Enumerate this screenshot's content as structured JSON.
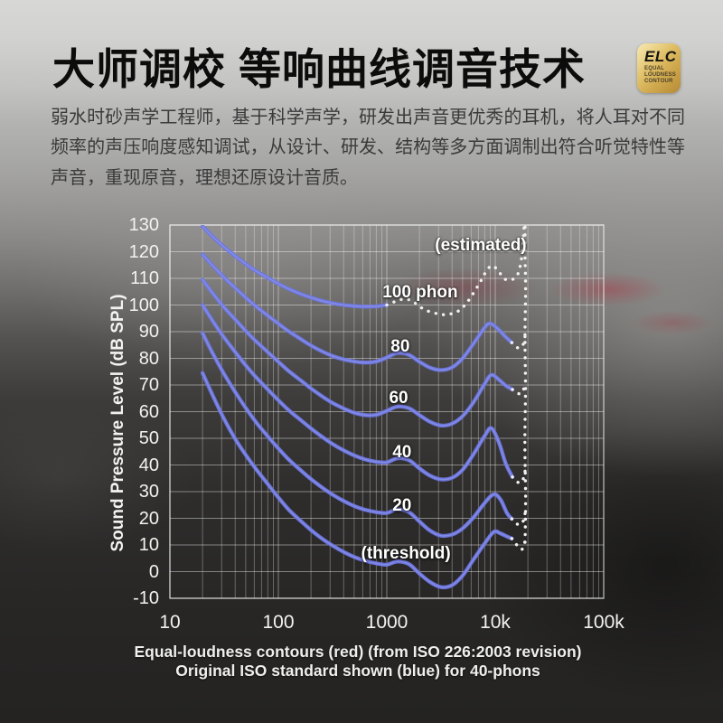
{
  "header": {
    "title": "大师调校 等响曲线调音技术",
    "badge": {
      "acronym": "ELC",
      "sub": [
        "EQUAL",
        "LOUDNESS",
        "CONTOUR"
      ]
    }
  },
  "intro": {
    "text": "弱水时砂声学工程师，基于科学声学，研发出声音更优秀的耳机，将人耳对不同频率的声压响度感知调试，从设计、研发、结构等多方面调制出符合听觉特性等声音，重现原音，理想还原设计音质。"
  },
  "chart_data": {
    "type": "line",
    "x_scale": "log",
    "x_range": [
      10,
      100000
    ],
    "y_range": [
      -10,
      130
    ],
    "grid": "on",
    "xlabel": "",
    "ylabel": "Sound Pressure Level (dB SPL)",
    "caption": [
      "Equal-loudness contours (red) (from ISO 226:2003 revision)",
      "Original ISO standard shown (blue) for 40-phons"
    ],
    "x_ticks": [
      {
        "value": 10,
        "label": "10"
      },
      {
        "value": 100,
        "label": "100"
      },
      {
        "value": 1000,
        "label": "1000"
      },
      {
        "value": 10000,
        "label": "10k"
      },
      {
        "value": 100000,
        "label": "100k"
      }
    ],
    "y_ticks": [
      130,
      120,
      110,
      100,
      90,
      80,
      70,
      60,
      50,
      40,
      30,
      20,
      10,
      0,
      -10
    ],
    "colors": {
      "contour": "#6e77e3",
      "contour_highlight": "#9ca6f0",
      "estimated": "#f1f1ef",
      "grid": "rgba(255,255,255,0.30)",
      "grid_major": "rgba(255,255,255,0.42)",
      "frame": "rgba(255,255,255,0.62)",
      "text": "#f2f2f0"
    },
    "series": [
      {
        "name": "contour-100-phon",
        "style": "solid",
        "points": [
          [
            20,
            129.5
          ],
          [
            25,
            125.5
          ],
          [
            31.5,
            121.8
          ],
          [
            40,
            118.4
          ],
          [
            50,
            115.4
          ],
          [
            63,
            112.6
          ],
          [
            80,
            110.2
          ],
          [
            100,
            108
          ],
          [
            125,
            106
          ],
          [
            160,
            104.2
          ],
          [
            200,
            102.8
          ],
          [
            250,
            101.6
          ],
          [
            315,
            100.7
          ],
          [
            400,
            100
          ],
          [
            500,
            99.6
          ],
          [
            630,
            99.4
          ],
          [
            800,
            99.5
          ],
          [
            1000,
            100
          ]
        ]
      },
      {
        "name": "estimated-100-phon",
        "style": "dotted",
        "points": [
          [
            1000,
            100
          ],
          [
            1250,
            101.6
          ],
          [
            1500,
            102.3
          ],
          [
            1800,
            100.9
          ],
          [
            2200,
            98.4
          ],
          [
            2800,
            96.9
          ],
          [
            3500,
            96.4
          ],
          [
            4500,
            97.6
          ],
          [
            5500,
            101
          ],
          [
            7000,
            107.5
          ],
          [
            8300,
            112.8
          ],
          [
            9300,
            114.7
          ],
          [
            10500,
            113.2
          ],
          [
            12000,
            110
          ],
          [
            13500,
            109.4
          ],
          [
            15000,
            110
          ],
          [
            16300,
            112
          ],
          [
            17300,
            116.5
          ],
          [
            18100,
            124
          ],
          [
            18600,
            133
          ]
        ]
      },
      {
        "name": "contour-80-phon",
        "style": "solid",
        "points": [
          [
            20,
            119
          ],
          [
            25,
            114.6
          ],
          [
            31.5,
            110.4
          ],
          [
            40,
            106.4
          ],
          [
            50,
            102.8
          ],
          [
            63,
            99.3
          ],
          [
            80,
            96
          ],
          [
            100,
            93
          ],
          [
            125,
            90.1
          ],
          [
            160,
            87.3
          ],
          [
            200,
            84.8
          ],
          [
            250,
            82.7
          ],
          [
            315,
            80.9
          ],
          [
            400,
            79.6
          ],
          [
            500,
            78.8
          ],
          [
            630,
            78.4
          ],
          [
            800,
            78.8
          ],
          [
            1000,
            80.3
          ],
          [
            1250,
            82
          ],
          [
            1600,
            81.3
          ],
          [
            2000,
            78.7
          ],
          [
            2500,
            76.5
          ],
          [
            3150,
            75.6
          ],
          [
            4000,
            76.6
          ],
          [
            5000,
            80
          ],
          [
            6300,
            85.5
          ],
          [
            8000,
            91.6
          ],
          [
            9000,
            93.1
          ],
          [
            10500,
            91.2
          ],
          [
            12500,
            88
          ],
          [
            14200,
            85.9
          ]
        ]
      },
      {
        "name": "estimated-80-tail",
        "style": "dotted",
        "points": [
          [
            14200,
            85.9
          ],
          [
            16000,
            84
          ],
          [
            17800,
            84.6
          ],
          [
            19000,
            89
          ]
        ]
      },
      {
        "name": "contour-60-phon",
        "style": "solid",
        "points": [
          [
            20,
            109.5
          ],
          [
            25,
            104.2
          ],
          [
            31.5,
            99.2
          ],
          [
            40,
            94.6
          ],
          [
            50,
            90.3
          ],
          [
            63,
            86.2
          ],
          [
            80,
            82.3
          ],
          [
            100,
            78.7
          ],
          [
            125,
            75.2
          ],
          [
            160,
            71.8
          ],
          [
            200,
            68.7
          ],
          [
            250,
            65.9
          ],
          [
            315,
            63.3
          ],
          [
            400,
            61.2
          ],
          [
            500,
            59.6
          ],
          [
            630,
            58.7
          ],
          [
            800,
            58.8
          ],
          [
            1000,
            60.3
          ],
          [
            1250,
            61.9
          ],
          [
            1600,
            61.3
          ],
          [
            2000,
            58.7
          ],
          [
            2500,
            56.2
          ],
          [
            3150,
            54.8
          ],
          [
            4000,
            55.5
          ],
          [
            5000,
            58.3
          ],
          [
            6300,
            63.5
          ],
          [
            8000,
            70.5
          ],
          [
            9200,
            73.8
          ],
          [
            10800,
            72
          ],
          [
            12500,
            69.8
          ],
          [
            14400,
            68.3
          ]
        ]
      },
      {
        "name": "estimated-60-tail",
        "style": "dotted",
        "points": [
          [
            14400,
            68.3
          ],
          [
            16200,
            66.8
          ],
          [
            17800,
            67.3
          ],
          [
            19000,
            71
          ]
        ]
      },
      {
        "name": "contour-40-phon",
        "style": "solid",
        "points": [
          [
            20,
            100
          ],
          [
            25,
            93.8
          ],
          [
            31.5,
            87.9
          ],
          [
            40,
            82.4
          ],
          [
            50,
            77.4
          ],
          [
            63,
            72.7
          ],
          [
            80,
            68.3
          ],
          [
            100,
            64.3
          ],
          [
            125,
            60.5
          ],
          [
            160,
            56.9
          ],
          [
            200,
            53.7
          ],
          [
            250,
            50.7
          ],
          [
            315,
            47.9
          ],
          [
            400,
            45.5
          ],
          [
            500,
            43.6
          ],
          [
            630,
            42.1
          ],
          [
            800,
            41.2
          ],
          [
            1000,
            41
          ],
          [
            1250,
            42.5
          ],
          [
            1600,
            41.8
          ],
          [
            2000,
            38.7
          ],
          [
            2500,
            36
          ],
          [
            3150,
            34.6
          ],
          [
            4000,
            35.2
          ],
          [
            5000,
            38.2
          ],
          [
            6300,
            44
          ],
          [
            8000,
            51
          ],
          [
            9200,
            53.8
          ],
          [
            10800,
            48.5
          ],
          [
            12500,
            40.5
          ],
          [
            14400,
            35.5
          ]
        ]
      },
      {
        "name": "estimated-40-tail",
        "style": "dotted",
        "points": [
          [
            14400,
            35.5
          ],
          [
            16200,
            33.5
          ],
          [
            17800,
            34
          ],
          [
            19000,
            38.5
          ]
        ]
      },
      {
        "name": "contour-20-phon",
        "style": "solid",
        "points": [
          [
            20,
            89.5
          ],
          [
            25,
            81.6
          ],
          [
            31.5,
            74.2
          ],
          [
            40,
            67.4
          ],
          [
            50,
            61.4
          ],
          [
            63,
            55.8
          ],
          [
            80,
            50.7
          ],
          [
            100,
            46.2
          ],
          [
            125,
            42
          ],
          [
            160,
            38.1
          ],
          [
            200,
            34.7
          ],
          [
            250,
            31.7
          ],
          [
            315,
            28.9
          ],
          [
            400,
            26.5
          ],
          [
            500,
            24.6
          ],
          [
            630,
            23.2
          ],
          [
            800,
            22.3
          ],
          [
            1000,
            22
          ],
          [
            1250,
            23.4
          ],
          [
            1600,
            22.3
          ],
          [
            2000,
            18.8
          ],
          [
            2500,
            15.4
          ],
          [
            3150,
            13.5
          ],
          [
            4000,
            13.9
          ],
          [
            5000,
            16.2
          ],
          [
            6300,
            20.3
          ],
          [
            8000,
            25.8
          ],
          [
            9700,
            29
          ],
          [
            11200,
            27
          ],
          [
            12800,
            22
          ],
          [
            14200,
            19.8
          ]
        ]
      },
      {
        "name": "estimated-20-tail",
        "style": "dotted",
        "points": [
          [
            14200,
            19.8
          ],
          [
            16000,
            17.8
          ],
          [
            17800,
            18.3
          ],
          [
            19000,
            22.5
          ]
        ]
      },
      {
        "name": "contour-threshold",
        "style": "solid",
        "points": [
          [
            20,
            74.5
          ],
          [
            25,
            65.8
          ],
          [
            31.5,
            57.4
          ],
          [
            40,
            49.8
          ],
          [
            50,
            43.8
          ],
          [
            63,
            38.2
          ],
          [
            80,
            32.8
          ],
          [
            100,
            27.8
          ],
          [
            125,
            23.2
          ],
          [
            160,
            19.1
          ],
          [
            200,
            15.6
          ],
          [
            250,
            12.5
          ],
          [
            315,
            9.8
          ],
          [
            400,
            7.4
          ],
          [
            500,
            5.5
          ],
          [
            630,
            4.1
          ],
          [
            800,
            3.1
          ],
          [
            1000,
            2.6
          ],
          [
            1250,
            3.8
          ],
          [
            1600,
            2.8
          ],
          [
            2000,
            -0.7
          ],
          [
            2500,
            -3.9
          ],
          [
            3150,
            -5.8
          ],
          [
            4000,
            -5.1
          ],
          [
            5000,
            -1.5
          ],
          [
            6300,
            4.5
          ],
          [
            8000,
            10.6
          ],
          [
            9700,
            14.9
          ],
          [
            11200,
            14.3
          ],
          [
            12800,
            13.2
          ],
          [
            14200,
            12.4
          ]
        ]
      },
      {
        "name": "estimated-threshold-tail",
        "style": "dotted",
        "points": [
          [
            14200,
            12.4
          ],
          [
            15800,
            10
          ],
          [
            17200,
            8.4
          ],
          [
            18300,
            9.2
          ],
          [
            19000,
            13
          ]
        ]
      },
      {
        "name": "estimated-20k-rise",
        "style": "dotted",
        "points": [
          [
            18850,
            11
          ],
          [
            19050,
            28
          ],
          [
            18750,
            48
          ],
          [
            19000,
            68
          ],
          [
            18800,
            88
          ],
          [
            19050,
            106
          ],
          [
            18800,
            120
          ],
          [
            18900,
            134
          ]
        ]
      }
    ],
    "labels": [
      {
        "text": "(estimated)",
        "f": 7350,
        "db": 122.3
      },
      {
        "text": "100 phon",
        "f": 2030,
        "db": 104.6
      },
      {
        "text": "80",
        "f": 1330,
        "db": 84.3
      },
      {
        "text": "60",
        "f": 1285,
        "db": 64.8
      },
      {
        "text": "40",
        "f": 1380,
        "db": 44.6
      },
      {
        "text": "20",
        "f": 1380,
        "db": 24.7
      },
      {
        "text": "(threshold)",
        "f": 1500,
        "db": 6.6
      }
    ]
  }
}
